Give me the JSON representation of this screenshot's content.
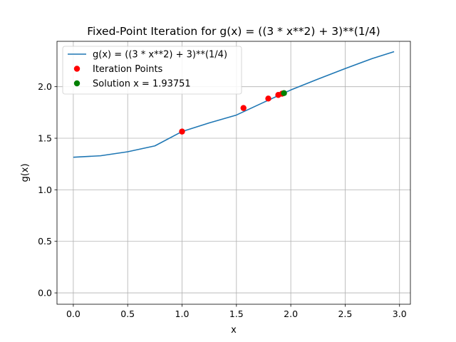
{
  "chart_data": {
    "type": "line",
    "title": "Fixed-Point Iteration for g(x) = ((3 * x**2) + 3)**(1/4)",
    "xlabel": "x",
    "ylabel": "g(x)",
    "xlim": [
      -0.15,
      3.1
    ],
    "ylim": [
      -0.11,
      2.44
    ],
    "x_ticks": [
      0.0,
      0.5,
      1.0,
      1.5,
      2.0,
      2.5,
      3.0
    ],
    "x_tick_labels": [
      "0.0",
      "0.5",
      "1.0",
      "1.5",
      "2.0",
      "2.5",
      "3.0"
    ],
    "y_ticks": [
      0.0,
      0.5,
      1.0,
      1.5,
      2.0
    ],
    "y_tick_labels": [
      "0.0",
      "0.5",
      "1.0",
      "1.5",
      "2.0"
    ],
    "grid": true,
    "legend_position": "upper-left",
    "series": [
      {
        "name": "g(x) = ((3 * x**2) + 3)**(1/4)",
        "kind": "line",
        "color": "#1f77b4",
        "x": [
          0.0,
          0.25,
          0.5,
          0.75,
          1.0,
          1.25,
          1.5,
          1.75,
          2.0,
          2.25,
          2.5,
          2.75,
          2.95
        ],
        "y": [
          1.316,
          1.33,
          1.369,
          1.426,
          1.565,
          1.649,
          1.725,
          1.848,
          1.968,
          2.074,
          2.176,
          2.273,
          2.34
        ]
      },
      {
        "name": "Iteration Points",
        "kind": "scatter",
        "color": "#ff0000",
        "x": [
          1.0,
          1.565,
          1.793,
          1.885,
          1.92
        ],
        "y": [
          1.565,
          1.793,
          1.885,
          1.92,
          1.932
        ]
      },
      {
        "name": "Solution x = 1.93751",
        "kind": "scatter",
        "color": "#008000",
        "x": [
          1.93751
        ],
        "y": [
          1.93751
        ]
      }
    ]
  }
}
